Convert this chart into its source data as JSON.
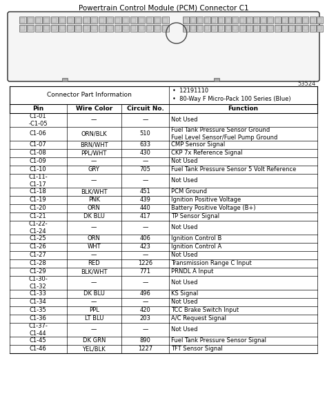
{
  "title": "Powertrain Control Module (PCM) Connector C1",
  "part_info_label": "Connector Part Information",
  "part_info_bullets": [
    "12191110",
    "80-Way F Micro-Pack 100 Series (Blue)"
  ],
  "diagram_number": "53524",
  "col_headers": [
    "Pin",
    "Wire Color",
    "Circuit No.",
    "Function"
  ],
  "rows": [
    {
      "pin": "C1-01\n-C1-05",
      "wire": "—",
      "circuit": "—",
      "func": "Not Used",
      "lines": 2
    },
    {
      "pin": "C1-06",
      "wire": "ORN/BLK",
      "circuit": "510",
      "func": "Fuel Tank Pressure Sensor Ground\nFuel Level Sensor/Fuel Pump Ground",
      "lines": 2
    },
    {
      "pin": "C1-07",
      "wire": "BRN/WHT",
      "circuit": "633",
      "func": "CMP Sensor Signal",
      "lines": 1
    },
    {
      "pin": "C1-08",
      "wire": "PPL/WHT",
      "circuit": "430",
      "func": "CKP 7x Reference Signal",
      "lines": 1
    },
    {
      "pin": "C1-09",
      "wire": "—",
      "circuit": "—",
      "func": "Not Used",
      "lines": 1
    },
    {
      "pin": "C1-10",
      "wire": "GRY",
      "circuit": "705",
      "func": "Fuel Tank Pressure Sensor 5 Volt Reference",
      "lines": 1
    },
    {
      "pin": "C1-11-\nC1-17",
      "wire": "—",
      "circuit": "—",
      "func": "Not Used",
      "lines": 2
    },
    {
      "pin": "C1-18",
      "wire": "BLK/WHT",
      "circuit": "451",
      "func": "PCM Ground",
      "lines": 1
    },
    {
      "pin": "C1-19",
      "wire": "PNK",
      "circuit": "439",
      "func": "Ignition Positive Voltage",
      "lines": 1
    },
    {
      "pin": "C1-20",
      "wire": "ORN",
      "circuit": "440",
      "func": "Battery Positive Voltage (B+)",
      "lines": 1
    },
    {
      "pin": "C1-21",
      "wire": "DK BLU",
      "circuit": "417",
      "func": "TP Sensor Signal",
      "lines": 1
    },
    {
      "pin": "C1-22-\nC1-24",
      "wire": "—",
      "circuit": "—",
      "func": "Not Used",
      "lines": 2
    },
    {
      "pin": "C1-25",
      "wire": "ORN",
      "circuit": "406",
      "func": "Ignition Control B",
      "lines": 1
    },
    {
      "pin": "C1-26",
      "wire": "WHT",
      "circuit": "423",
      "func": "Ignition Control A",
      "lines": 1
    },
    {
      "pin": "C1-27",
      "wire": "—",
      "circuit": "—",
      "func": "Not Used",
      "lines": 1
    },
    {
      "pin": "C1-28",
      "wire": "RED",
      "circuit": "1226",
      "func": "Transmission Range C Input",
      "lines": 1
    },
    {
      "pin": "C1-29",
      "wire": "BLK/WHT",
      "circuit": "771",
      "func": "PRNDL A Input",
      "lines": 1
    },
    {
      "pin": "C1-30-\nC1-32",
      "wire": "—",
      "circuit": "—",
      "func": "Not Used",
      "lines": 2
    },
    {
      "pin": "C1-33",
      "wire": "DK BLU",
      "circuit": "496",
      "func": "KS Signal",
      "lines": 1
    },
    {
      "pin": "C1-34",
      "wire": "—",
      "circuit": "—",
      "func": "Not Used",
      "lines": 1
    },
    {
      "pin": "C1-35",
      "wire": "PPL",
      "circuit": "420",
      "func": "TCC Brake Switch Input",
      "lines": 1
    },
    {
      "pin": "C1-36",
      "wire": "LT BLU",
      "circuit": "203",
      "func": "A/C Request Signal",
      "lines": 1
    },
    {
      "pin": "C1-37-\nC1-44",
      "wire": "—",
      "circuit": "—",
      "func": "Not Used",
      "lines": 2
    },
    {
      "pin": "C1-45",
      "wire": "DK GRN",
      "circuit": "890",
      "func": "Fuel Tank Pressure Sensor Signal",
      "lines": 1
    },
    {
      "pin": "C1-46",
      "wire": "YEL/BLK",
      "circuit": "1227",
      "func": "TFT Sensor Signal",
      "lines": 1
    }
  ],
  "bg_color": "#ffffff",
  "text_color": "#000000",
  "line_color": "#000000",
  "fig_width": 4.74,
  "fig_height": 6.03,
  "dpi": 100
}
